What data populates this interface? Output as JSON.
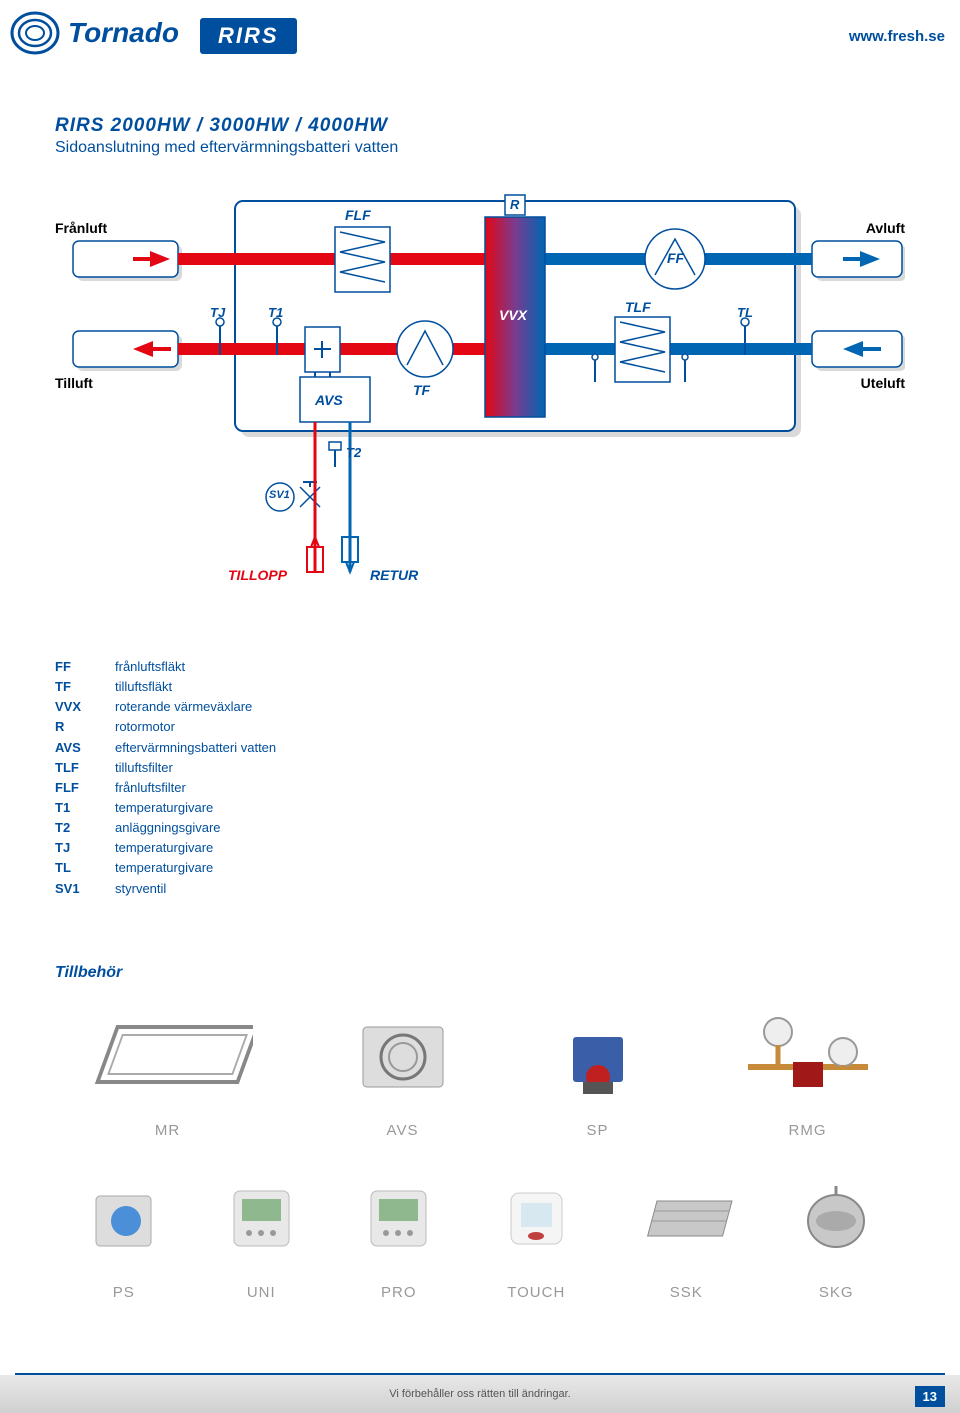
{
  "header": {
    "logo_text": "Tornado",
    "badge": "RIRS",
    "url": "www.fresh.se"
  },
  "title": "RIRS 2000HW / 3000HW / 4000HW",
  "subtitle": "Sidoanslutning med eftervärmningsbatteri vatten",
  "diagram": {
    "labels": {
      "franluft": "Frånluft",
      "avluft": "Avluft",
      "tilluft": "Tilluft",
      "uteluft": "Uteluft",
      "flf": "FLF",
      "r": "R",
      "ff": "FF",
      "tj": "TJ",
      "t1": "T1",
      "tf": "TF",
      "vvx": "VVX",
      "tlf": "TLF",
      "tl": "TL",
      "avs": "AVS",
      "t2": "T2",
      "sv1": "SV1",
      "tillopp": "TILLOPP",
      "retur": "RETUR"
    },
    "colors": {
      "blue": "#004f9e",
      "red": "#e30613",
      "cyan": "#6eb8dc",
      "box_fill": "#ffffff",
      "box_stroke": "#004f9e",
      "gradient_left": "#e30613",
      "gradient_right": "#0066b3",
      "shadow": "#d9d9d9"
    }
  },
  "legend": [
    {
      "k": "FF",
      "v": "frånluftsfläkt"
    },
    {
      "k": "TF",
      "v": "tilluftsfläkt"
    },
    {
      "k": "VVX",
      "v": "roterande värmeväxlare"
    },
    {
      "k": "R",
      "v": "rotormotor"
    },
    {
      "k": "AVS",
      "v": "eftervärmningsbatteri vatten"
    },
    {
      "k": "TLF",
      "v": "tilluftsfilter"
    },
    {
      "k": "FLF",
      "v": "frånluftsfilter"
    },
    {
      "k": "T1",
      "v": "temperaturgivare"
    },
    {
      "k": "T2",
      "v": "anläggningsgivare"
    },
    {
      "k": "TJ",
      "v": "temperaturgivare"
    },
    {
      "k": "TL",
      "v": "temperaturgivare"
    },
    {
      "k": "SV1",
      "v": "styrventil"
    }
  ],
  "accessories": {
    "title": "Tillbehör",
    "row1": [
      {
        "id": "mr",
        "label": "MR"
      },
      {
        "id": "avs",
        "label": "AVS"
      },
      {
        "id": "sp",
        "label": "SP"
      },
      {
        "id": "rmg",
        "label": "RMG"
      }
    ],
    "row2": [
      {
        "id": "ps",
        "label": "PS"
      },
      {
        "id": "uni",
        "label": "UNI"
      },
      {
        "id": "pro",
        "label": "PRO"
      },
      {
        "id": "touch",
        "label": "TOUCH"
      },
      {
        "id": "ssk",
        "label": "SSK"
      },
      {
        "id": "skg",
        "label": "SKG"
      }
    ]
  },
  "footer": {
    "disclaimer": "Vi förbehåller oss rätten till ändringar.",
    "page": "13"
  }
}
